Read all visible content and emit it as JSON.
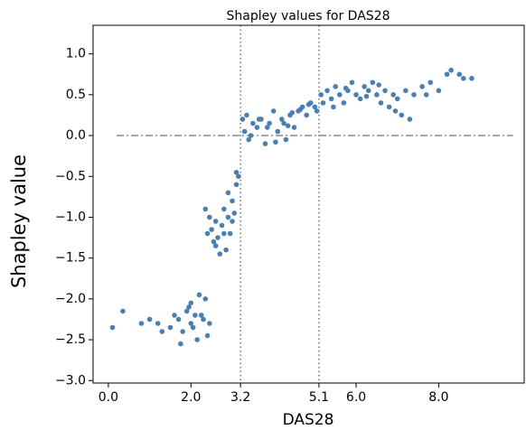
{
  "chart_data": {
    "type": "scatter",
    "title": "Shapley values for DAS28",
    "xlabel": "DAS28",
    "ylabel": "Shapley value",
    "color": "#4a7fb0",
    "xlim": [
      -0.37,
      10.07
    ],
    "ylim": [
      -3.03,
      1.35
    ],
    "xticks": [
      {
        "value": 0,
        "label": "0.0"
      },
      {
        "value": 2,
        "label": "2.0"
      },
      {
        "value": 3.2,
        "label": "3.2"
      },
      {
        "value": 5.1,
        "label": "5.1"
      },
      {
        "value": 6,
        "label": "6.0"
      },
      {
        "value": 8,
        "label": "8.0"
      }
    ],
    "yticks": [
      {
        "value": 1,
        "label": "1.0"
      },
      {
        "value": 0.5,
        "label": "0.5"
      },
      {
        "value": 0,
        "label": "0.0"
      },
      {
        "value": -0.5,
        "label": "−0.5"
      },
      {
        "value": -1,
        "label": "−1.0"
      },
      {
        "value": -1.5,
        "label": "−1.5"
      },
      {
        "value": -2,
        "label": "−2.0"
      },
      {
        "value": -2.5,
        "label": "−2.5"
      },
      {
        "value": -3,
        "label": "−3.0"
      }
    ],
    "vlines": [
      3.2,
      5.1
    ],
    "hline": {
      "y": 0,
      "xmin": 0.2,
      "xmax": 9.8
    },
    "x": [
      0.1,
      0.35,
      0.8,
      1.0,
      1.2,
      1.3,
      1.5,
      1.6,
      1.7,
      1.8,
      1.9,
      2.0,
      2.0,
      2.1,
      2.15,
      2.2,
      2.3,
      2.35,
      2.4,
      2.45,
      1.75,
      1.95,
      2.05,
      2.25,
      2.35,
      2.4,
      2.45,
      2.5,
      2.55,
      2.6,
      2.65,
      2.7,
      2.75,
      2.8,
      2.85,
      2.9,
      2.95,
      3.0,
      3.05,
      3.1,
      3.1,
      3.15,
      2.6,
      2.8,
      2.9,
      3.0,
      3.25,
      3.3,
      3.35,
      3.4,
      3.5,
      3.6,
      3.7,
      3.8,
      3.9,
      4.0,
      4.1,
      4.2,
      4.3,
      4.4,
      4.5,
      4.6,
      4.7,
      4.8,
      4.9,
      5.0,
      3.45,
      3.65,
      3.85,
      4.05,
      4.25,
      4.45,
      4.65,
      4.85,
      5.05,
      4.35,
      5.15,
      5.2,
      5.3,
      5.4,
      5.5,
      5.6,
      5.7,
      5.8,
      5.9,
      6.0,
      6.1,
      6.2,
      6.3,
      6.4,
      6.5,
      6.6,
      6.7,
      6.8,
      6.9,
      7.0,
      7.1,
      7.2,
      7.3,
      5.45,
      5.75,
      6.25,
      6.55,
      6.95,
      7.4,
      7.6,
      7.8,
      8.0,
      8.2,
      8.3,
      8.5,
      8.6,
      8.8,
      7.7
    ],
    "y": [
      -2.35,
      -2.15,
      -2.3,
      -2.25,
      -2.3,
      -2.4,
      -2.35,
      -2.2,
      -2.25,
      -2.4,
      -2.15,
      -2.05,
      -2.3,
      -2.2,
      -2.5,
      -1.95,
      -2.25,
      -2.0,
      -2.45,
      -2.3,
      -2.55,
      -2.1,
      -2.35,
      -2.2,
      -0.9,
      -1.2,
      -1.0,
      -1.15,
      -1.3,
      -1.05,
      -1.25,
      -1.45,
      -1.1,
      -0.9,
      -1.4,
      -1.0,
      -1.2,
      -0.8,
      -0.95,
      -0.6,
      -0.45,
      -0.5,
      -1.35,
      -1.2,
      -0.7,
      -1.05,
      0.2,
      0.05,
      0.25,
      -0.05,
      0.15,
      0.1,
      0.2,
      -0.1,
      0.15,
      0.3,
      0.05,
      0.2,
      -0.05,
      0.25,
      0.1,
      0.3,
      0.35,
      0.25,
      0.4,
      0.35,
      0.0,
      0.2,
      0.1,
      -0.08,
      0.15,
      0.28,
      0.32,
      0.38,
      0.3,
      0.12,
      0.5,
      0.4,
      0.55,
      0.45,
      0.6,
      0.5,
      0.4,
      0.55,
      0.65,
      0.5,
      0.45,
      0.6,
      0.55,
      0.65,
      0.5,
      0.4,
      0.55,
      0.35,
      0.5,
      0.45,
      0.25,
      0.55,
      0.2,
      0.35,
      0.58,
      0.48,
      0.62,
      0.3,
      0.5,
      0.6,
      0.65,
      0.55,
      0.75,
      0.8,
      0.75,
      0.7,
      0.7,
      0.5
    ]
  }
}
